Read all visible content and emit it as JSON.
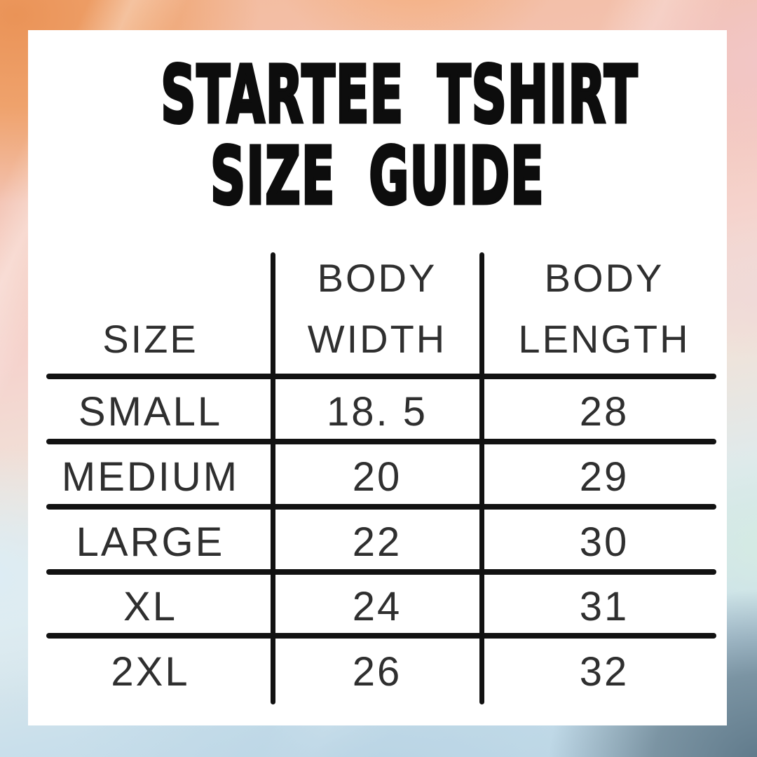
{
  "title": {
    "line1": "STARTEE TSHIRT",
    "line2": "SIZE GUIDE"
  },
  "size_table": {
    "header": {
      "size_label": "SIZE",
      "body_width_line1": "BODY",
      "body_width_line2": "WIDTH",
      "body_length_line1": "BODY",
      "body_length_line2": "LENGTH"
    },
    "rows": [
      {
        "size": "SMALL",
        "body_width": "18. 5",
        "body_length": "28"
      },
      {
        "size": "MEDIUM",
        "body_width": "20",
        "body_length": "29"
      },
      {
        "size": "LARGE",
        "body_width": "22",
        "body_length": "30"
      },
      {
        "size": "XL",
        "body_width": "24",
        "body_length": "31"
      },
      {
        "size": "2XL",
        "body_width": "26",
        "body_length": "32"
      }
    ]
  },
  "colors": {
    "card_background": "#ffffff",
    "title_text": "#0d0d0d",
    "table_text": "#2f2f2f",
    "table_lines": "#121212",
    "watercolor_palette": [
      "#ea9357",
      "#f4ae7d",
      "#f2c6c8",
      "#f5d3cd",
      "#d5ebe3",
      "#dcedf5",
      "#bed8e7",
      "#5e7889"
    ]
  }
}
